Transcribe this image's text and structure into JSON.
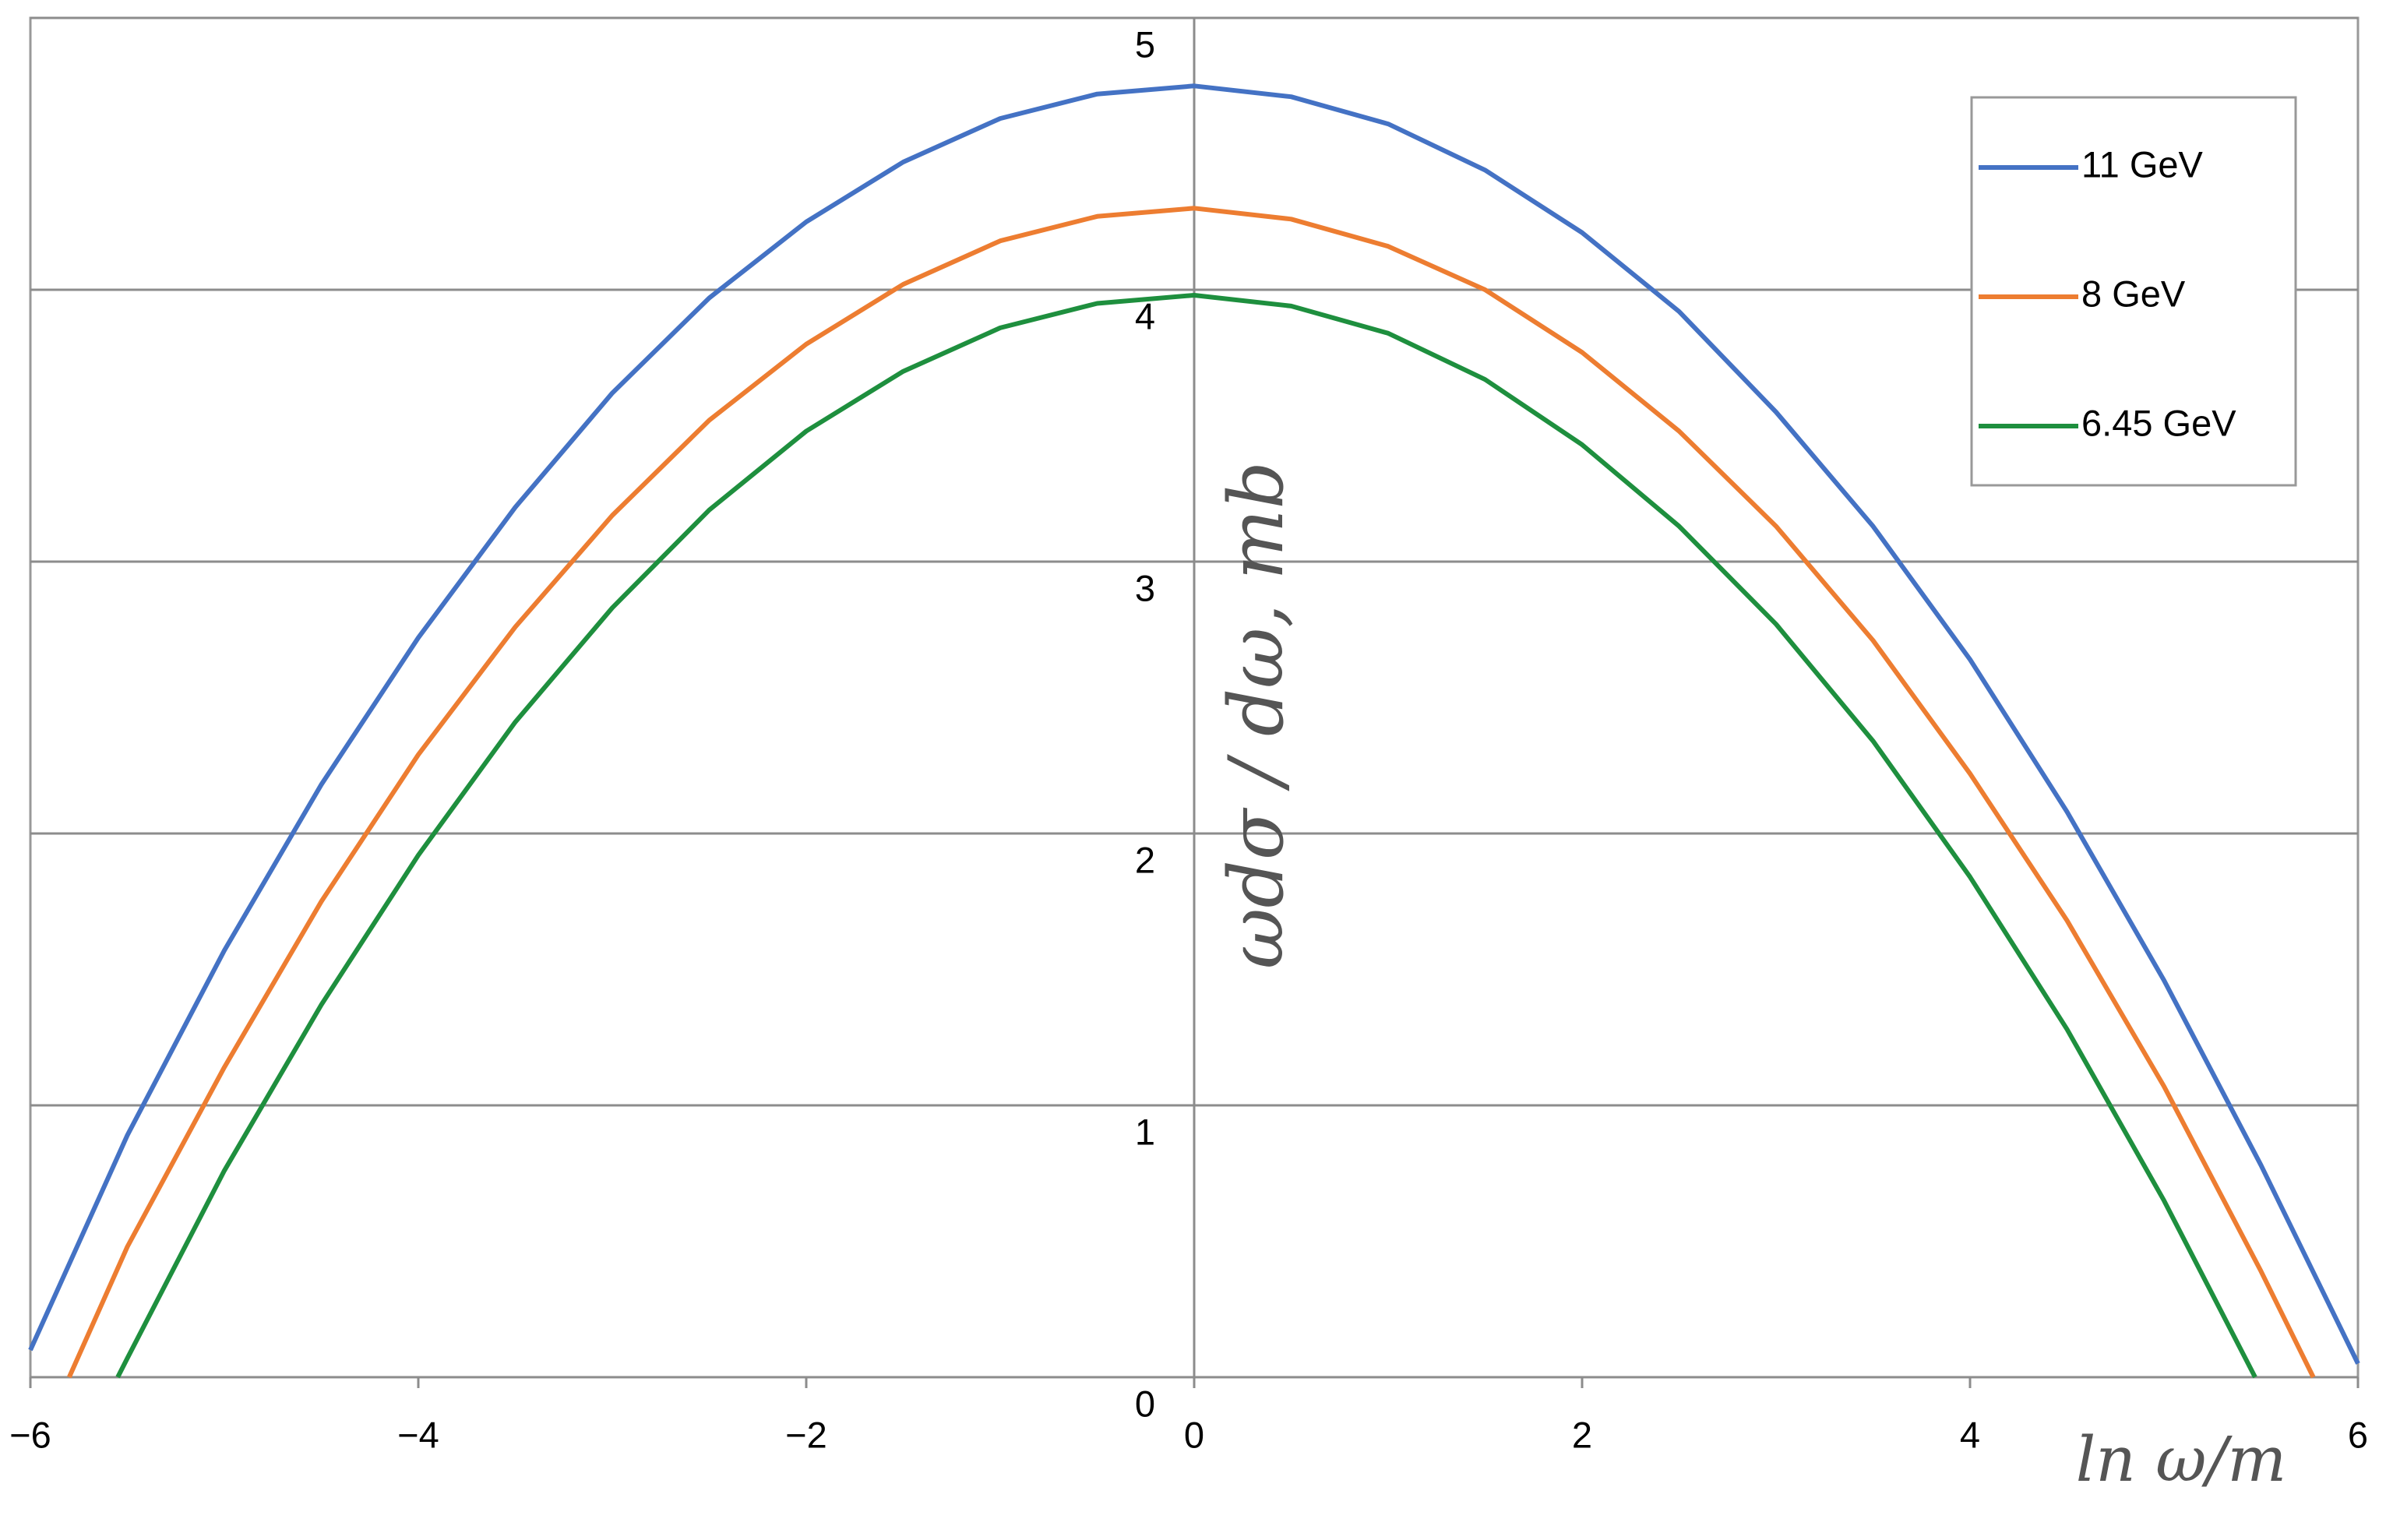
{
  "chart_data": {
    "type": "line",
    "x_label": "ln ω/m",
    "y_label": "ωdσ / dω, mb",
    "xlim": [
      -6,
      6
    ],
    "ylim": [
      0,
      5
    ],
    "xticks": [
      {
        "value": -6,
        "label": "−6"
      },
      {
        "value": -4,
        "label": "−4"
      },
      {
        "value": -2,
        "label": "−2"
      },
      0,
      2,
      4,
      6
    ],
    "yticks": [
      0,
      1,
      2,
      3,
      4,
      5
    ],
    "grid": true,
    "legend": "upper right",
    "series": [
      {
        "name": "11 GeV",
        "color": "#4472c4",
        "x": [
          -6,
          -5.5,
          -5,
          -4.5,
          -4,
          -3.5,
          -3,
          -2.5,
          -2,
          -1.5,
          -1,
          -0.5,
          0,
          0.5,
          1,
          1.5,
          2,
          2.5,
          3,
          3.5,
          4,
          4.5,
          5,
          5.5,
          6
        ],
        "values": [
          0.1,
          0.89,
          1.57,
          2.18,
          2.72,
          3.2,
          3.62,
          3.97,
          4.25,
          4.47,
          4.63,
          4.72,
          4.75,
          4.71,
          4.61,
          4.44,
          4.21,
          3.92,
          3.55,
          3.13,
          2.64,
          2.08,
          1.46,
          0.78,
          0.05
        ]
      },
      {
        "name": "8 GeV",
        "color": "#ed7d31",
        "x": [
          -5.8,
          -5.5,
          -5,
          -4.5,
          -4,
          -3.5,
          -3,
          -2.5,
          -2,
          -1.5,
          -1,
          -0.5,
          0,
          0.5,
          1,
          1.5,
          2,
          2.5,
          3,
          3.5,
          4,
          4.5,
          5,
          5.5,
          5.77
        ],
        "values": [
          0,
          0.48,
          1.14,
          1.75,
          2.29,
          2.76,
          3.17,
          3.52,
          3.8,
          4.02,
          4.18,
          4.27,
          4.3,
          4.26,
          4.16,
          4.0,
          3.77,
          3.48,
          3.13,
          2.71,
          2.22,
          1.68,
          1.07,
          0.39,
          0
        ]
      },
      {
        "name": "6.45 GeV",
        "color": "#1e8f3e",
        "x": [
          -5.55,
          -5.5,
          -5,
          -4.5,
          -4,
          -3.5,
          -3,
          -2.5,
          -2,
          -1.5,
          -1,
          -0.5,
          0,
          0.5,
          1,
          1.5,
          2,
          2.5,
          3,
          3.5,
          4,
          4.5,
          5,
          5.47
        ],
        "values": [
          0,
          0.07,
          0.76,
          1.37,
          1.92,
          2.41,
          2.83,
          3.19,
          3.48,
          3.7,
          3.86,
          3.95,
          3.98,
          3.94,
          3.84,
          3.67,
          3.43,
          3.13,
          2.77,
          2.34,
          1.84,
          1.28,
          0.65,
          0
        ]
      }
    ]
  }
}
